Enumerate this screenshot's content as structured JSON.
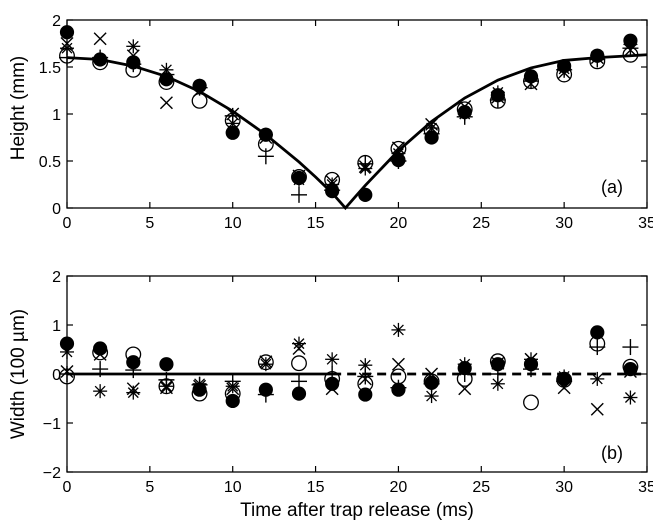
{
  "chart_data": [
    {
      "type": "scatter",
      "panel_label": "(a)",
      "xlabel": "",
      "ylabel": "Height (mm)",
      "xlim": [
        0,
        35
      ],
      "ylim": [
        0,
        2
      ],
      "xticks": [
        0,
        5,
        10,
        15,
        20,
        25,
        30,
        35
      ],
      "yticks": [
        0,
        0.5,
        1,
        1.5,
        2
      ],
      "xtick_labels": [
        "0",
        "5",
        "10",
        "15",
        "20",
        "25",
        "30",
        "35"
      ],
      "ytick_labels": [
        "0",
        "0.5",
        "1",
        "1.5",
        "2"
      ],
      "grid": false,
      "x": [
        0,
        2,
        4,
        6,
        8,
        10,
        12,
        14,
        16,
        18,
        20,
        22,
        24,
        26,
        28,
        30,
        32,
        34
      ],
      "series": [
        {
          "marker": "filled-circle",
          "values": [
            1.87,
            1.58,
            1.55,
            1.37,
            1.3,
            0.8,
            0.78,
            0.32,
            0.18,
            0.14,
            0.51,
            0.75,
            1.02,
            1.2,
            1.4,
            1.51,
            1.62,
            1.78
          ]
        },
        {
          "marker": "open-circle",
          "values": [
            1.62,
            1.55,
            1.47,
            1.34,
            1.14,
            0.93,
            0.68,
            0.33,
            0.3,
            0.48,
            0.63,
            0.83,
            1.05,
            1.14,
            1.35,
            1.42,
            1.56,
            1.63
          ]
        },
        {
          "marker": "asterisk",
          "values": [
            1.7,
            1.58,
            1.72,
            1.47,
            1.3,
            0.9,
            0.78,
            0.3,
            0.25,
            0.42,
            0.58,
            0.85,
            1.0,
            1.23,
            1.4,
            1.48,
            1.62,
            1.74
          ]
        },
        {
          "marker": "cross",
          "values": [
            1.75,
            1.8,
            1.62,
            1.12,
            1.25,
            1.0,
            0.75,
            0.34,
            0.28,
            0.44,
            0.64,
            0.89,
            1.08,
            1.18,
            1.32,
            1.44,
            1.6,
            1.68
          ]
        },
        {
          "marker": "plus",
          "values": [
            1.6,
            1.6,
            1.53,
            1.42,
            1.28,
            0.98,
            0.55,
            0.14,
            0.19,
            0.47,
            0.5,
            0.79,
            0.97,
            1.15,
            1.35,
            1.47,
            1.58,
            1.7
          ]
        }
      ],
      "fit": {
        "style": "solid",
        "x": [
          0,
          2,
          4,
          6,
          8,
          10,
          12,
          14,
          15,
          16,
          16.8,
          17.5,
          18,
          20,
          22,
          24,
          26,
          28,
          30,
          32,
          34,
          35
        ],
        "y": [
          1.6,
          1.58,
          1.51,
          1.4,
          1.24,
          1.03,
          0.78,
          0.49,
          0.33,
          0.16,
          0.0,
          0.14,
          0.24,
          0.61,
          0.92,
          1.17,
          1.36,
          1.49,
          1.57,
          1.6,
          1.62,
          1.63
        ]
      }
    },
    {
      "type": "scatter",
      "panel_label": "(b)",
      "xlabel": "Time after trap release (ms)",
      "ylabel": "Width (100 µm)",
      "xlim": [
        0,
        35
      ],
      "ylim": [
        -2,
        2
      ],
      "xticks": [
        0,
        5,
        10,
        15,
        20,
        25,
        30,
        35
      ],
      "yticks": [
        -2,
        -1,
        0,
        1,
        2
      ],
      "xtick_labels": [
        "0",
        "5",
        "10",
        "15",
        "20",
        "25",
        "30",
        "35"
      ],
      "ytick_labels": [
        "−2",
        "−1",
        "0",
        "1",
        "2"
      ],
      "grid": false,
      "x": [
        0,
        2,
        4,
        6,
        8,
        10,
        12,
        14,
        16,
        18,
        20,
        22,
        24,
        26,
        28,
        30,
        32,
        34
      ],
      "series": [
        {
          "marker": "filled-circle",
          "values": [
            0.62,
            0.52,
            0.24,
            0.2,
            -0.32,
            -0.55,
            -0.32,
            -0.4,
            -0.2,
            -0.42,
            -0.32,
            -0.18,
            0.12,
            0.2,
            0.2,
            -0.1,
            0.85,
            0.1
          ]
        },
        {
          "marker": "open-circle",
          "values": [
            -0.05,
            0.44,
            0.4,
            -0.25,
            -0.4,
            -0.4,
            0.24,
            0.22,
            -0.1,
            -0.2,
            -0.05,
            -0.15,
            -0.1,
            0.26,
            -0.58,
            -0.12,
            0.62,
            0.15
          ]
        },
        {
          "marker": "asterisk",
          "values": [
            0.45,
            -0.35,
            -0.38,
            -0.25,
            -0.2,
            -0.25,
            0.2,
            0.62,
            0.3,
            0.18,
            0.9,
            -0.45,
            0.2,
            -0.2,
            0.3,
            -0.05,
            -0.1,
            -0.48
          ]
        },
        {
          "marker": "cross",
          "values": [
            0.05,
            0.4,
            -0.3,
            -0.28,
            -0.25,
            -0.3,
            0.25,
            0.52,
            -0.3,
            -0.1,
            0.2,
            0.0,
            -0.3,
            0.22,
            0.3,
            -0.28,
            -0.72,
            0.05
          ]
        },
        {
          "marker": "plus",
          "values": [
            0.0,
            0.1,
            0.08,
            -0.12,
            -0.22,
            -0.15,
            -0.42,
            -0.15,
            0.0,
            -0.05,
            -0.28,
            -0.2,
            0.0,
            0.0,
            0.1,
            -0.15,
            0.55,
            0.55
          ]
        }
      ],
      "fit_solid": {
        "style": "solid",
        "x": [
          0,
          16
        ],
        "y": [
          0,
          0
        ]
      },
      "fit_dashed": {
        "style": "dashed",
        "x": [
          16,
          35
        ],
        "y": [
          0,
          0
        ]
      }
    }
  ]
}
